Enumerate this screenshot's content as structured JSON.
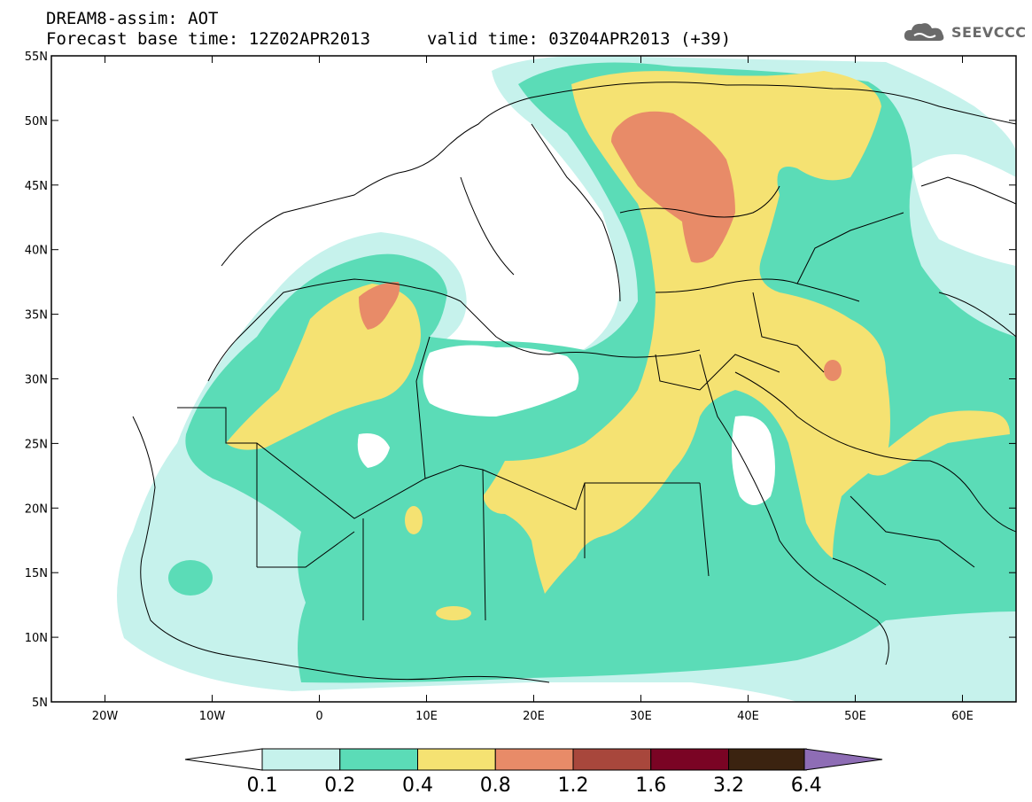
{
  "title": {
    "line1": "DREAM8-assim: AOT",
    "line2": "Forecast base time: 12Z02APR2013",
    "valid": "valid time: 03Z04APR2013 (+39)"
  },
  "logo": {
    "text": "SEEVCCC",
    "icon": "cloud-icon"
  },
  "map": {
    "lon_range": [
      -25,
      65
    ],
    "lat_range": [
      5,
      55
    ],
    "x_ticks": [
      "20W",
      "10W",
      "0",
      "10E",
      "20E",
      "30E",
      "40E",
      "50E",
      "60E"
    ],
    "y_ticks": [
      "55N",
      "50N",
      "45N",
      "40N",
      "35N",
      "30N",
      "25N",
      "20N",
      "15N",
      "10N",
      "5N"
    ]
  },
  "colorbar": {
    "labels": [
      "0.1",
      "0.2",
      "0.4",
      "0.8",
      "1.2",
      "1.6",
      "3.2",
      "6.4"
    ],
    "colors": [
      "#c6f2ec",
      "#5bdcb7",
      "#f5e272",
      "#e88b68",
      "#a8473c",
      "#7a0424",
      "#3b2310",
      "#8e6db5"
    ]
  }
}
